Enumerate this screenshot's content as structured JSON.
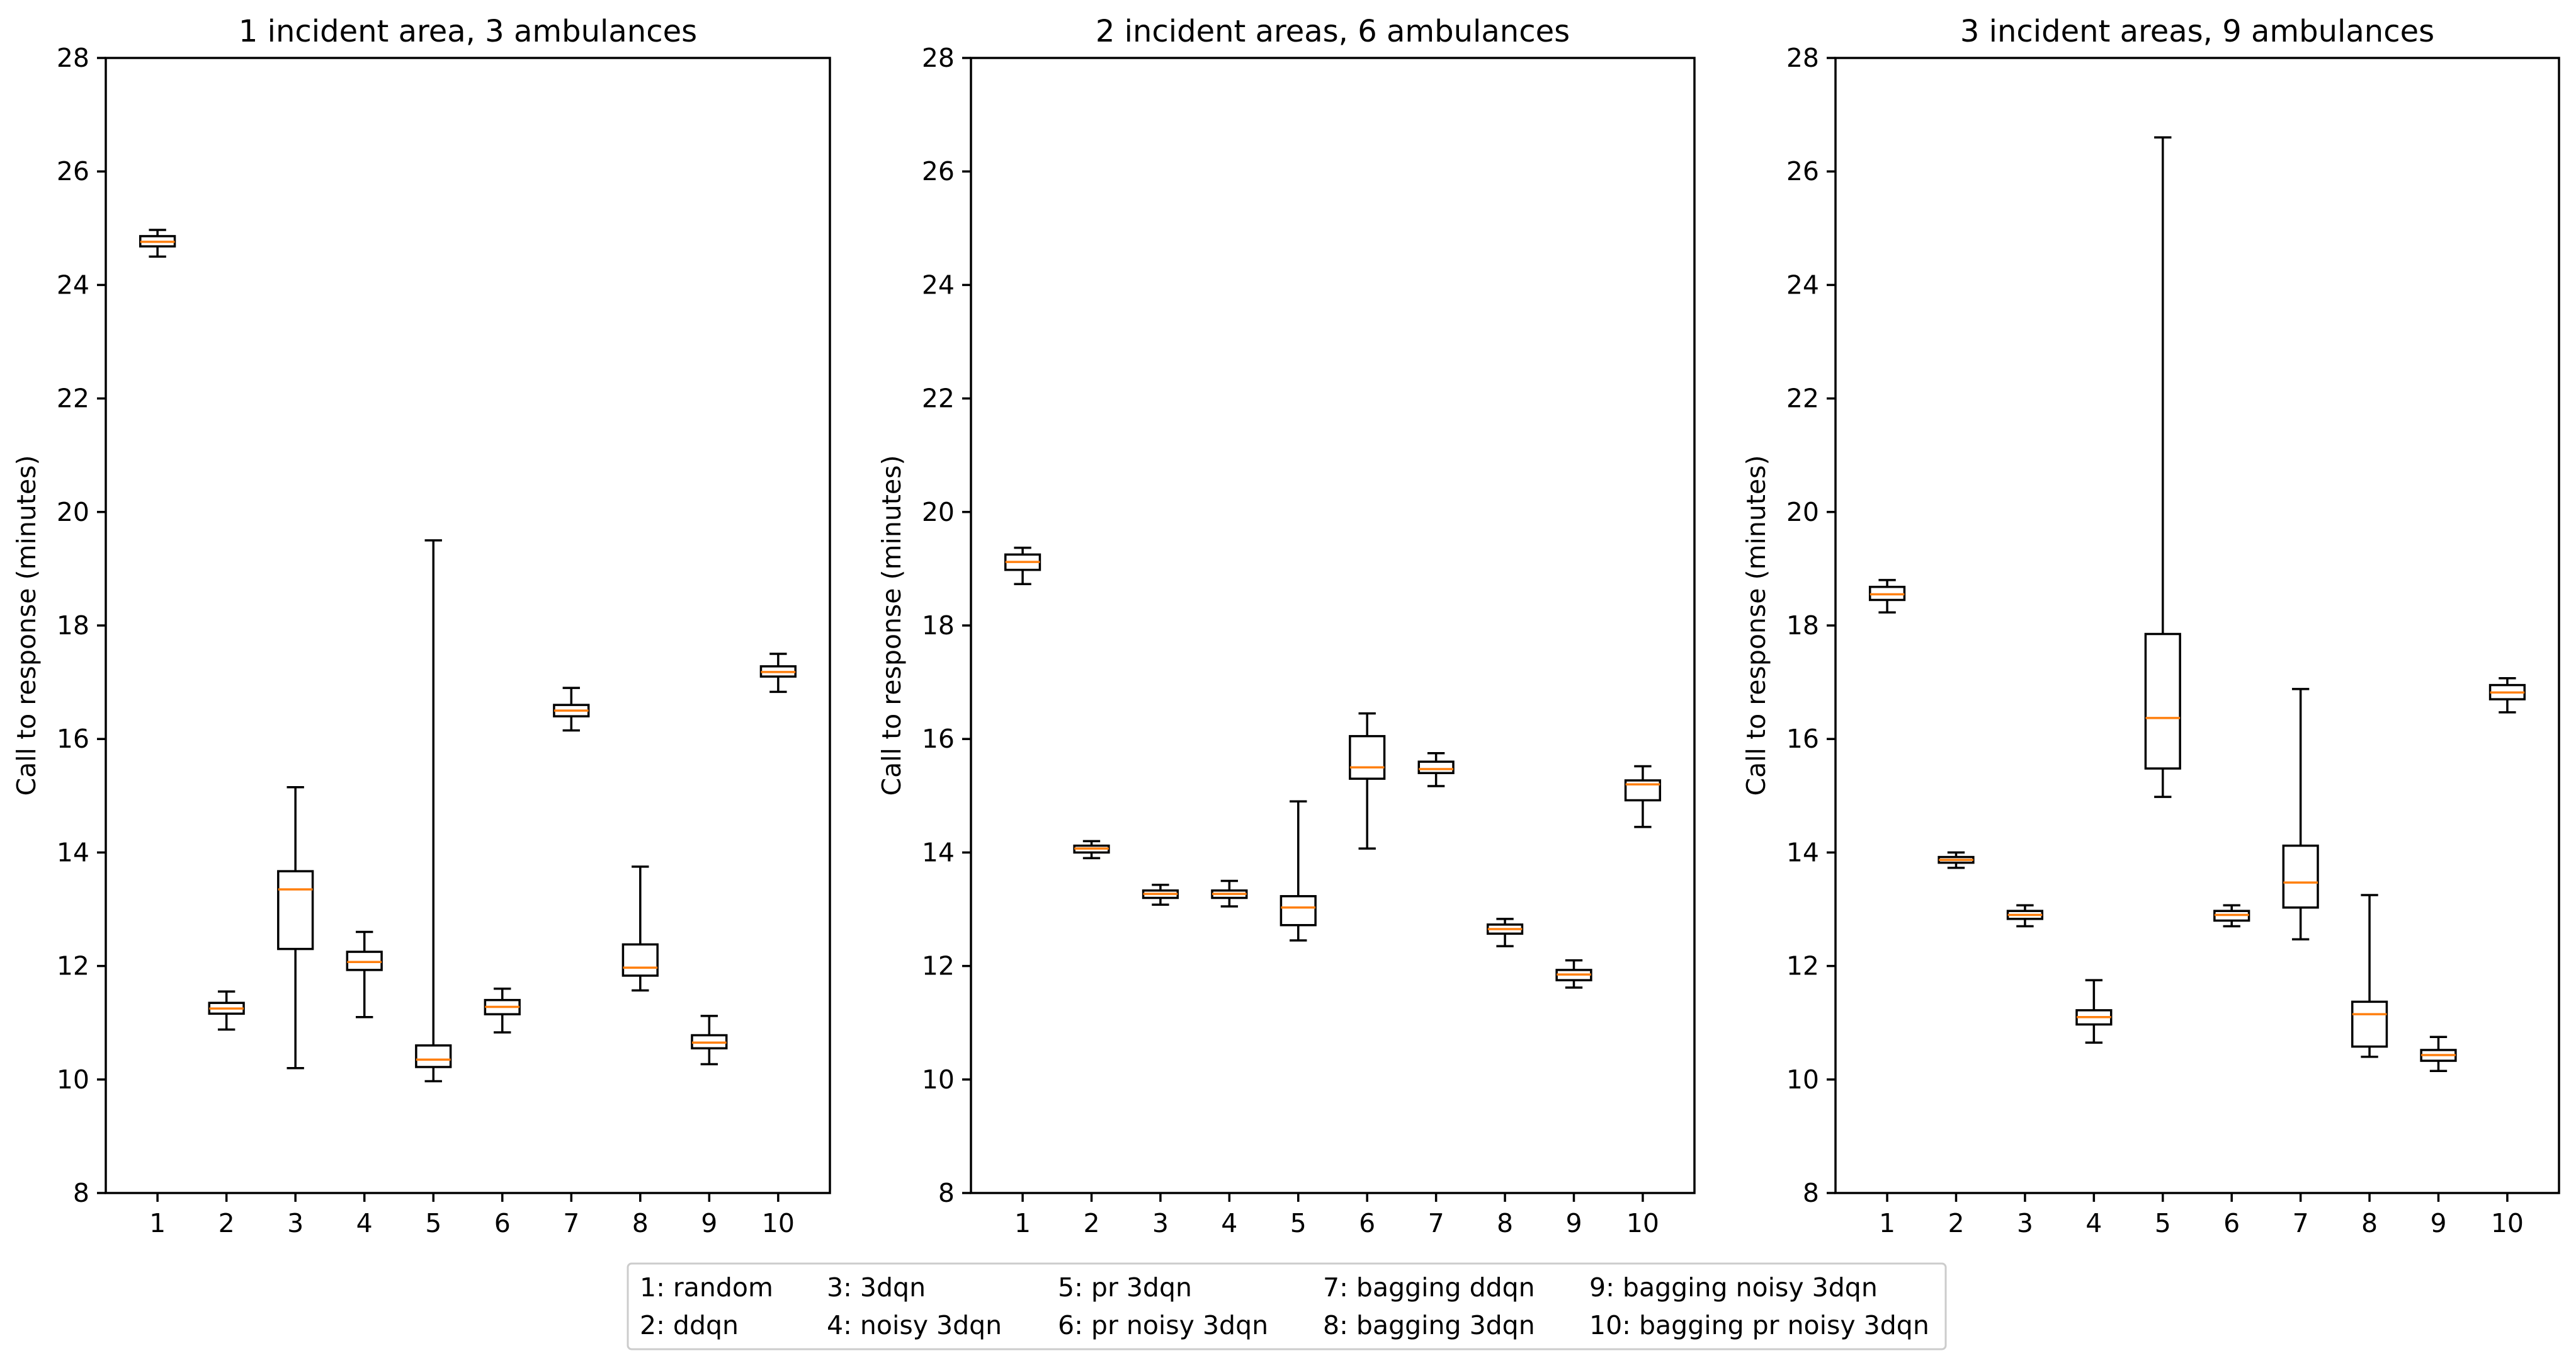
{
  "figure": {
    "background": "#ffffff",
    "box_color": "#000000",
    "median_color": "#ff7f0e"
  },
  "chart_data": [
    {
      "type": "boxplot",
      "title": "1 incident area, 3 ambulances",
      "xlabel": "",
      "ylabel": "Call to response (minutes)",
      "ylim": [
        8,
        28
      ],
      "yticks": [
        "8",
        "10",
        "12",
        "14",
        "16",
        "18",
        "20",
        "22",
        "24",
        "26",
        "28"
      ],
      "categories": [
        "1",
        "2",
        "3",
        "4",
        "5",
        "6",
        "7",
        "8",
        "9",
        "10"
      ],
      "boxes": [
        {
          "whisker_low": 24.5,
          "q1": 24.68,
          "median": 24.76,
          "q3": 24.86,
          "whisker_high": 24.97
        },
        {
          "whisker_low": 10.88,
          "q1": 11.16,
          "median": 11.25,
          "q3": 11.35,
          "whisker_high": 11.55
        },
        {
          "whisker_low": 10.2,
          "q1": 12.3,
          "median": 13.35,
          "q3": 13.67,
          "whisker_high": 15.15
        },
        {
          "whisker_low": 11.1,
          "q1": 11.93,
          "median": 12.07,
          "q3": 12.25,
          "whisker_high": 12.6
        },
        {
          "whisker_low": 9.97,
          "q1": 10.22,
          "median": 10.35,
          "q3": 10.6,
          "whisker_high": 19.5
        },
        {
          "whisker_low": 10.83,
          "q1": 11.15,
          "median": 11.28,
          "q3": 11.4,
          "whisker_high": 11.6
        },
        {
          "whisker_low": 16.15,
          "q1": 16.4,
          "median": 16.5,
          "q3": 16.6,
          "whisker_high": 16.9
        },
        {
          "whisker_low": 11.57,
          "q1": 11.83,
          "median": 11.97,
          "q3": 12.38,
          "whisker_high": 13.75
        },
        {
          "whisker_low": 10.27,
          "q1": 10.55,
          "median": 10.65,
          "q3": 10.78,
          "whisker_high": 11.12
        },
        {
          "whisker_low": 16.83,
          "q1": 17.1,
          "median": 17.18,
          "q3": 17.28,
          "whisker_high": 17.5
        }
      ]
    },
    {
      "type": "boxplot",
      "title": "2 incident areas, 6 ambulances",
      "xlabel": "",
      "ylabel": "Call to response (minutes)",
      "ylim": [
        8,
        28
      ],
      "yticks": [
        "8",
        "10",
        "12",
        "14",
        "16",
        "18",
        "20",
        "22",
        "24",
        "26",
        "28"
      ],
      "categories": [
        "1",
        "2",
        "3",
        "4",
        "5",
        "6",
        "7",
        "8",
        "9",
        "10"
      ],
      "boxes": [
        {
          "whisker_low": 18.73,
          "q1": 18.98,
          "median": 19.12,
          "q3": 19.25,
          "whisker_high": 19.37
        },
        {
          "whisker_low": 13.9,
          "q1": 14.0,
          "median": 14.07,
          "q3": 14.12,
          "whisker_high": 14.2
        },
        {
          "whisker_low": 13.08,
          "q1": 13.2,
          "median": 13.27,
          "q3": 13.33,
          "whisker_high": 13.43
        },
        {
          "whisker_low": 13.05,
          "q1": 13.2,
          "median": 13.27,
          "q3": 13.33,
          "whisker_high": 13.5
        },
        {
          "whisker_low": 12.45,
          "q1": 12.72,
          "median": 13.03,
          "q3": 13.23,
          "whisker_high": 14.9
        },
        {
          "whisker_low": 14.07,
          "q1": 15.3,
          "median": 15.5,
          "q3": 16.05,
          "whisker_high": 16.45
        },
        {
          "whisker_low": 15.17,
          "q1": 15.4,
          "median": 15.47,
          "q3": 15.6,
          "whisker_high": 15.75
        },
        {
          "whisker_low": 12.35,
          "q1": 12.57,
          "median": 12.65,
          "q3": 12.73,
          "whisker_high": 12.83
        },
        {
          "whisker_low": 11.62,
          "q1": 11.75,
          "median": 11.85,
          "q3": 11.93,
          "whisker_high": 12.1
        },
        {
          "whisker_low": 14.45,
          "q1": 14.92,
          "median": 15.2,
          "q3": 15.27,
          "whisker_high": 15.52
        }
      ]
    },
    {
      "type": "boxplot",
      "title": "3 incident areas, 9 ambulances",
      "xlabel": "",
      "ylabel": "Call to response (minutes)",
      "ylim": [
        8,
        28
      ],
      "yticks": [
        "8",
        "10",
        "12",
        "14",
        "16",
        "18",
        "20",
        "22",
        "24",
        "26",
        "28"
      ],
      "categories": [
        "1",
        "2",
        "3",
        "4",
        "5",
        "6",
        "7",
        "8",
        "9",
        "10"
      ],
      "boxes": [
        {
          "whisker_low": 18.23,
          "q1": 18.45,
          "median": 18.55,
          "q3": 18.68,
          "whisker_high": 18.8
        },
        {
          "whisker_low": 13.73,
          "q1": 13.82,
          "median": 13.87,
          "q3": 13.92,
          "whisker_high": 14.0
        },
        {
          "whisker_low": 12.7,
          "q1": 12.83,
          "median": 12.9,
          "q3": 12.97,
          "whisker_high": 13.07
        },
        {
          "whisker_low": 10.65,
          "q1": 10.97,
          "median": 11.1,
          "q3": 11.22,
          "whisker_high": 11.75
        },
        {
          "whisker_low": 14.98,
          "q1": 15.48,
          "median": 16.37,
          "q3": 17.85,
          "whisker_high": 26.6
        },
        {
          "whisker_low": 12.7,
          "q1": 12.8,
          "median": 12.9,
          "q3": 12.97,
          "whisker_high": 13.07
        },
        {
          "whisker_low": 12.47,
          "q1": 13.03,
          "median": 13.47,
          "q3": 14.12,
          "whisker_high": 16.88
        },
        {
          "whisker_low": 10.4,
          "q1": 10.58,
          "median": 11.15,
          "q3": 11.37,
          "whisker_high": 13.25
        },
        {
          "whisker_low": 10.15,
          "q1": 10.33,
          "median": 10.43,
          "q3": 10.52,
          "whisker_high": 10.75
        },
        {
          "whisker_low": 16.47,
          "q1": 16.7,
          "median": 16.82,
          "q3": 16.95,
          "whisker_high": 17.07
        }
      ]
    }
  ],
  "legend": {
    "placement": "bottom-center",
    "columns": [
      [
        "1: random",
        "2: ddqn"
      ],
      [
        "3: 3dqn",
        "4: noisy 3dqn"
      ],
      [
        "5: pr 3dqn",
        "6: pr noisy 3dqn"
      ],
      [
        "7: bagging ddqn",
        "8: bagging 3dqn"
      ],
      [
        "9: bagging noisy 3dqn",
        "10: bagging pr noisy 3dqn"
      ]
    ]
  }
}
